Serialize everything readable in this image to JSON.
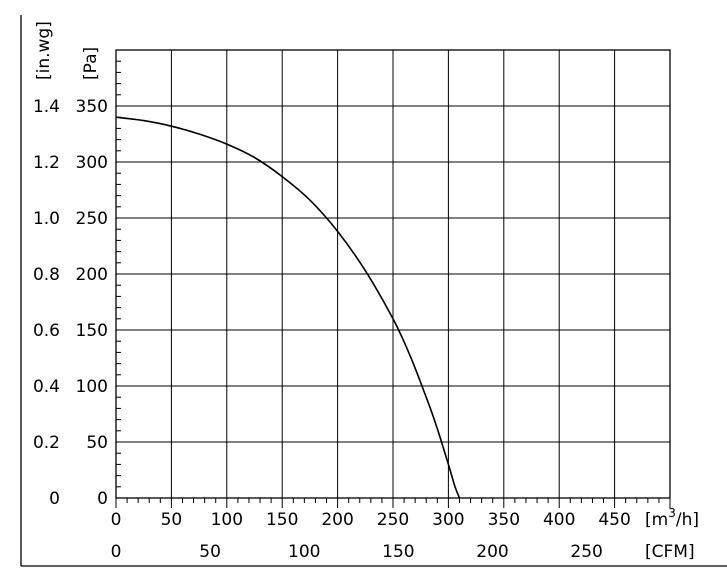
{
  "chart_data": {
    "type": "line",
    "title": "",
    "grid": true,
    "x_axis": {
      "unit_label": "[m³/h]",
      "unit_base": "[m",
      "unit_sup": "3",
      "unit_tail": "/h]",
      "range": [
        0,
        500
      ],
      "ticks": [
        0,
        50,
        100,
        150,
        200,
        250,
        300,
        350,
        400,
        450
      ],
      "tick_labels": [
        "0",
        "50",
        "100",
        "150",
        "200",
        "250",
        "300",
        "350",
        "400",
        "450"
      ]
    },
    "x_axis_secondary": {
      "unit_label": "[CFM]",
      "range_cfm": [
        0,
        294.3
      ],
      "ticks": [
        0,
        50,
        100,
        150,
        200,
        250
      ],
      "tick_labels": [
        "0",
        "50",
        "100",
        "150",
        "200",
        "250"
      ]
    },
    "y_axis": {
      "unit_label": "[Pa]",
      "range": [
        0,
        400
      ],
      "ticks": [
        0,
        50,
        100,
        150,
        200,
        250,
        300,
        350
      ],
      "tick_labels": [
        "0",
        "50",
        "100",
        "150",
        "200",
        "250",
        "300",
        "350"
      ]
    },
    "y_axis_secondary": {
      "unit_label": "[in.wg]",
      "ticks": [
        0,
        50,
        100,
        150,
        200,
        250,
        300,
        350
      ],
      "tick_labels": [
        "0",
        "0.2",
        "0.4",
        "0.6",
        "0.8",
        "1.0",
        "1.2",
        "1.4"
      ]
    },
    "series": [
      {
        "x": [
          0,
          25,
          50,
          75,
          100,
          125,
          150,
          175,
          200,
          225,
          250,
          265,
          280,
          290,
          300,
          306,
          310
        ],
        "y": [
          340,
          337,
          332,
          325,
          316,
          304,
          287,
          266,
          238,
          203,
          160,
          128,
          90,
          62,
          30,
          10,
          0
        ]
      }
    ]
  }
}
